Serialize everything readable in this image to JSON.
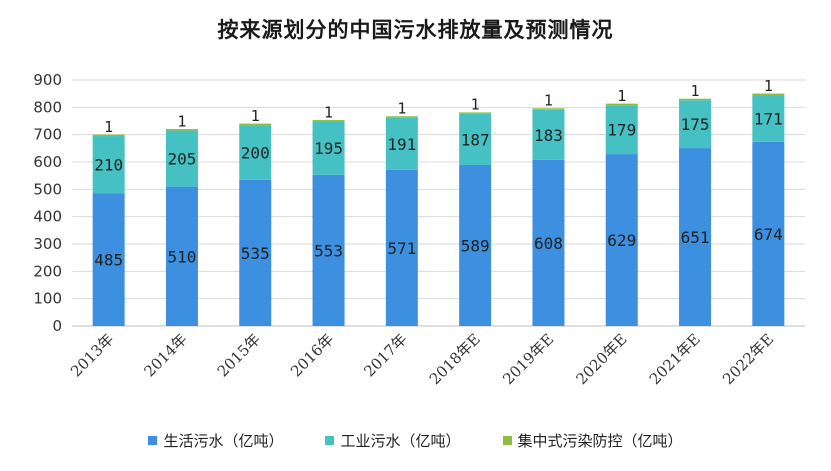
{
  "chart_data": {
    "type": "bar",
    "stacked": true,
    "title": "按来源划分的中国污水排放量及预测情况",
    "categories": [
      "2013年",
      "2014年",
      "2015年",
      "2016年",
      "2017年",
      "2018年E",
      "2019年E",
      "2020年E",
      "2021年E",
      "2022年E"
    ],
    "series": [
      {
        "name": "生活污水（亿吨）",
        "color": "#3d8fe0",
        "values": [
          485,
          510,
          535,
          553,
          571,
          589,
          608,
          629,
          651,
          674
        ]
      },
      {
        "name": "工业污水（亿吨）",
        "color": "#46c1c3",
        "values": [
          210,
          205,
          200,
          195,
          191,
          187,
          183,
          179,
          175,
          171
        ]
      },
      {
        "name": "集中式污染防控（亿吨）",
        "color": "#8cbf3f",
        "values": [
          1,
          1,
          1,
          1,
          1,
          1,
          1,
          1,
          1,
          1
        ]
      }
    ],
    "ylim": [
      0,
      900
    ],
    "yticks": [
      0,
      100,
      200,
      300,
      400,
      500,
      600,
      700,
      800,
      900
    ],
    "grid": true,
    "legend_position": "bottom"
  }
}
